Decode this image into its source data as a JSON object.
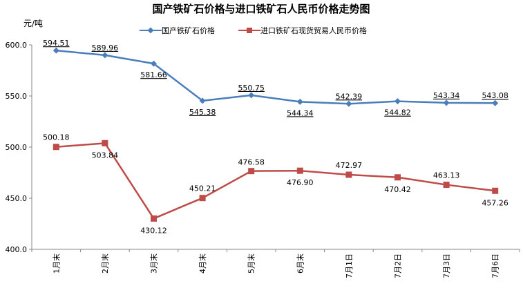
{
  "chart_data": {
    "type": "line",
    "title": "国产铁矿石价格与进口铁矿石人民币价格走势图",
    "ylabel": "元/吨",
    "xlabel": "",
    "ylim": [
      400,
      600
    ],
    "yticks": [
      "400.0",
      "450.0",
      "500.0",
      "550.0",
      "600.0"
    ],
    "categories": [
      "1月末",
      "2月末",
      "3月末",
      "4月末",
      "5月末",
      "6月末",
      "7月1日",
      "7月2日",
      "7月3日",
      "7月6日"
    ],
    "grid": false,
    "legend_position": "top",
    "series": [
      {
        "name": "国产铁矿石价格",
        "color": "#4a7ebb",
        "marker": "diamond",
        "values": [
          594.51,
          589.96,
          581.66,
          545.38,
          550.75,
          544.34,
          542.39,
          544.82,
          543.34,
          543.08
        ],
        "labels": [
          "594.51",
          "589.96",
          "581.66",
          "545.38",
          "550.75",
          "544.34",
          "542.39",
          "544.82",
          "543.34",
          "543.08"
        ]
      },
      {
        "name": "进口铁矿石现货贸易人民币价格",
        "color": "#be4b48",
        "marker": "square",
        "values": [
          500.18,
          503.84,
          430.12,
          450.21,
          476.58,
          476.9,
          472.97,
          470.42,
          463.13,
          457.26
        ],
        "labels": [
          "500.18",
          "503.84",
          "430.12",
          "450.21",
          "476.58",
          "476.90",
          "472.97",
          "470.42",
          "463.13",
          "457.26"
        ]
      }
    ]
  }
}
